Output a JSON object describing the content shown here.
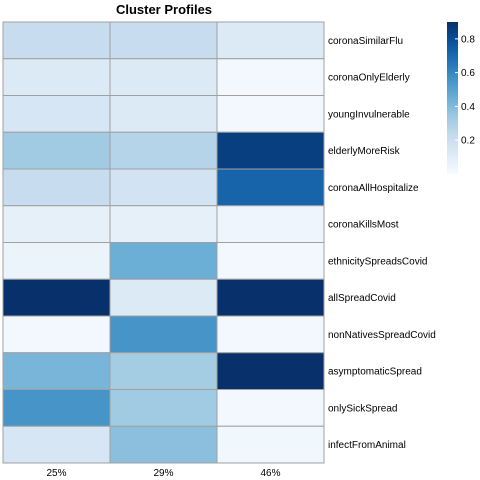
{
  "chart_data": {
    "type": "heatmap",
    "title": "Cluster Profiles",
    "columns": [
      "25%",
      "29%",
      "46%"
    ],
    "rows": [
      "coronaSimilarFlu",
      "coronaOnlyElderly",
      "youngInvulnerable",
      "elderlyMoreRisk",
      "coronaAllHospitalize",
      "coronaKillsMost",
      "ethnicitySpreadsCovid",
      "allSpreadCovid",
      "nonNativesSpreadCovid",
      "asymptomaticSpread",
      "onlySickSpread",
      "infectFromAnimal"
    ],
    "values": [
      [
        0.22,
        0.22,
        0.12
      ],
      [
        0.12,
        0.12,
        0.02
      ],
      [
        0.15,
        0.12,
        0.02
      ],
      [
        0.33,
        0.27,
        0.85
      ],
      [
        0.22,
        0.17,
        0.72
      ],
      [
        0.08,
        0.08,
        0.04
      ],
      [
        0.05,
        0.45,
        0.02
      ],
      [
        0.98,
        0.12,
        0.98
      ],
      [
        0.02,
        0.55,
        0.02
      ],
      [
        0.42,
        0.32,
        0.98
      ],
      [
        0.55,
        0.33,
        0.02
      ],
      [
        0.15,
        0.38,
        0.03
      ]
    ],
    "color_scale": {
      "min": 0,
      "max": 0.9,
      "low_color": "#f7fbff",
      "high_color": "#08306b",
      "ticks": [
        0.2,
        0.4,
        0.6,
        0.8
      ]
    },
    "legend_placement": "right"
  }
}
